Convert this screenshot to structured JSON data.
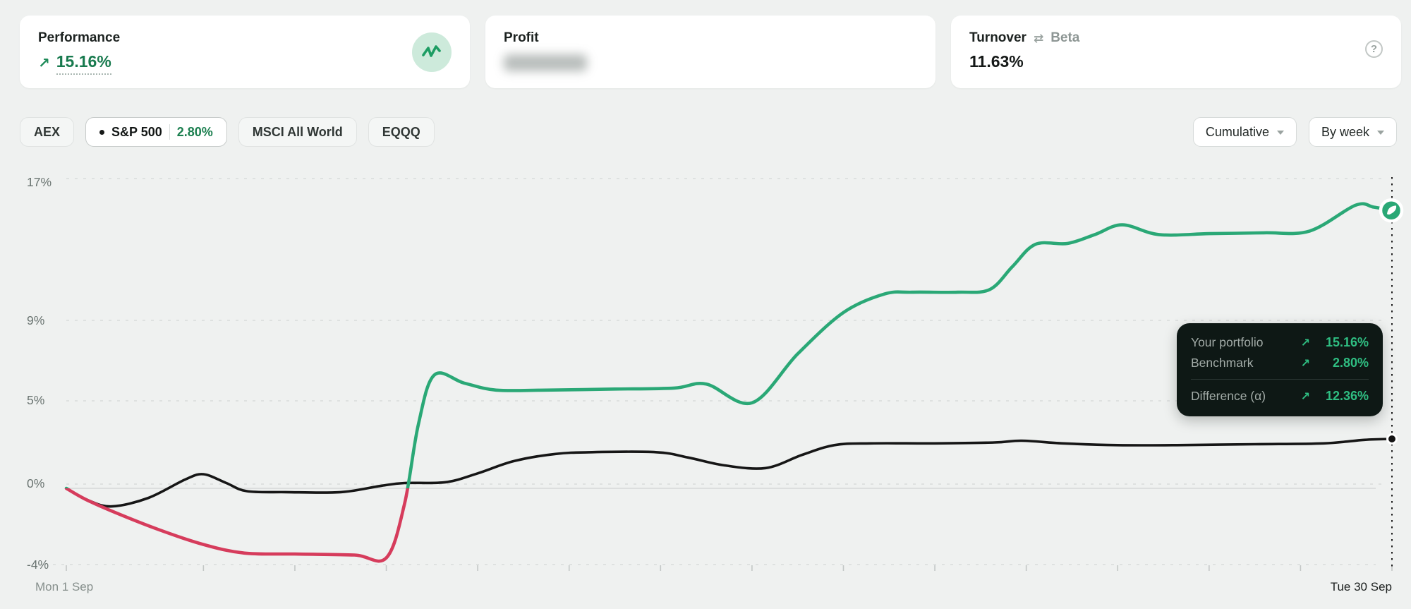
{
  "colors": {
    "portfolio_green": "#2aa876",
    "portfolio_negative_red": "#d63c5c",
    "benchmark_black": "#161616",
    "accent_dark_green": "#187a4e",
    "tooltip_green": "#2fbe82",
    "page_background": "#eff1f0",
    "grid_gray": "#d9dcdb"
  },
  "icons": {
    "performance_badge": "activity-zigzag-icon",
    "trend_arrow": "arrow-up-right-icon",
    "trend_arrow_glyph": "↗",
    "turnover_swap": "swap-arrows-icon",
    "swap_glyph": "⇄",
    "help": "question-mark-icon",
    "help_glyph": "?",
    "dropdown": "chevron-down-icon",
    "portfolio_end_marker": "leaf-badge-icon"
  },
  "cards": {
    "performance": {
      "title": "Performance",
      "value": "15.16%"
    },
    "profit": {
      "title": "Profit",
      "value_blurred": true
    },
    "turnover": {
      "title": "Turnover",
      "alt_title": "Beta",
      "value": "11.63%"
    }
  },
  "benchmarks": {
    "items": [
      {
        "label": "AEX",
        "selected": false
      },
      {
        "label": "S&P 500",
        "value": "2.80%",
        "selected": true
      },
      {
        "label": "MSCI All World",
        "selected": false
      },
      {
        "label": "EQQQ",
        "selected": false
      }
    ]
  },
  "controls": {
    "aggregation": "Cumulative",
    "granularity": "By week"
  },
  "tooltip": {
    "rows": [
      {
        "label": "Your portfolio",
        "value": "15.16%"
      },
      {
        "label": "Benchmark",
        "value": "2.80%"
      }
    ],
    "difference": {
      "label": "Difference (α)",
      "value": "12.36%"
    }
  },
  "chart_data": {
    "type": "line",
    "title": "Cumulative portfolio performance vs S&P 500 benchmark, September",
    "x_axis": {
      "start_label": "Mon 1 Sep",
      "end_label": "Tue 30 Sep",
      "days_span": 29,
      "tick_days": [
        0,
        3,
        5,
        7,
        9,
        11,
        13,
        15,
        17,
        19,
        21,
        23,
        25,
        27,
        29
      ]
    },
    "y_axis": {
      "unit": "%",
      "tick_labels": [
        "17%",
        "9%",
        "5%",
        "0%",
        "-4%"
      ],
      "tick_values": [
        17,
        9,
        5,
        0,
        -4
      ],
      "range": [
        -4,
        17
      ],
      "grid": "dashed"
    },
    "series": [
      {
        "name": "Benchmark (S&P 500)",
        "end_value": 2.8,
        "points": [
          [
            0,
            0
          ],
          [
            0.5,
            -0.65
          ],
          [
            1,
            -0.95
          ],
          [
            1.8,
            -0.5
          ],
          [
            2.6,
            0.5
          ],
          [
            3,
            0.8
          ],
          [
            3.5,
            0.3
          ],
          [
            3.95,
            -0.15
          ],
          [
            4.8,
            -0.2
          ],
          [
            6,
            -0.2
          ],
          [
            6.9,
            0.15
          ],
          [
            7.4,
            0.3
          ],
          [
            8.3,
            0.35
          ],
          [
            9,
            0.85
          ],
          [
            9.8,
            1.55
          ],
          [
            10.7,
            1.95
          ],
          [
            11.5,
            2.05
          ],
          [
            12.9,
            2.05
          ],
          [
            13.6,
            1.75
          ],
          [
            14.4,
            1.3
          ],
          [
            15.3,
            1.15
          ],
          [
            16.1,
            1.9
          ],
          [
            16.8,
            2.45
          ],
          [
            17.6,
            2.55
          ],
          [
            19,
            2.55
          ],
          [
            20.3,
            2.6
          ],
          [
            20.9,
            2.7
          ],
          [
            21.8,
            2.55
          ],
          [
            23,
            2.45
          ],
          [
            24.3,
            2.45
          ],
          [
            26,
            2.5
          ],
          [
            27.5,
            2.55
          ],
          [
            28.4,
            2.75
          ],
          [
            29,
            2.8
          ]
        ]
      },
      {
        "name": "Your portfolio",
        "end_value": 15.16,
        "colored_by_sign": true,
        "points": [
          [
            0,
            0
          ],
          [
            0.4,
            -0.55
          ],
          [
            1,
            -1.2
          ],
          [
            2,
            -2.15
          ],
          [
            3,
            -2.95
          ],
          [
            3.9,
            -3.4
          ],
          [
            5,
            -3.45
          ],
          [
            6.3,
            -3.5
          ],
          [
            7,
            -3.65
          ],
          [
            7.4,
            -0.8
          ],
          [
            7.7,
            3.6
          ],
          [
            8.05,
            6.25
          ],
          [
            8.7,
            5.85
          ],
          [
            9.4,
            5.5
          ],
          [
            10.5,
            5.5
          ],
          [
            12,
            5.55
          ],
          [
            13.3,
            5.6
          ],
          [
            14,
            5.8
          ],
          [
            15,
            4.85
          ],
          [
            16,
            7.3
          ],
          [
            17,
            9.4
          ],
          [
            17.9,
            10.45
          ],
          [
            18.5,
            10.55
          ],
          [
            19.5,
            10.55
          ],
          [
            20.2,
            10.7
          ],
          [
            20.7,
            12
          ],
          [
            21.2,
            13.25
          ],
          [
            21.9,
            13.3
          ],
          [
            22.5,
            13.8
          ],
          [
            23.1,
            14.35
          ],
          [
            23.9,
            13.8
          ],
          [
            25,
            13.85
          ],
          [
            26.2,
            13.9
          ],
          [
            27.2,
            14
          ],
          [
            28.2,
            15.45
          ],
          [
            28.6,
            15.35
          ],
          [
            29,
            15.16
          ]
        ]
      }
    ],
    "legend_position": "none",
    "crosshair_day": 29
  }
}
